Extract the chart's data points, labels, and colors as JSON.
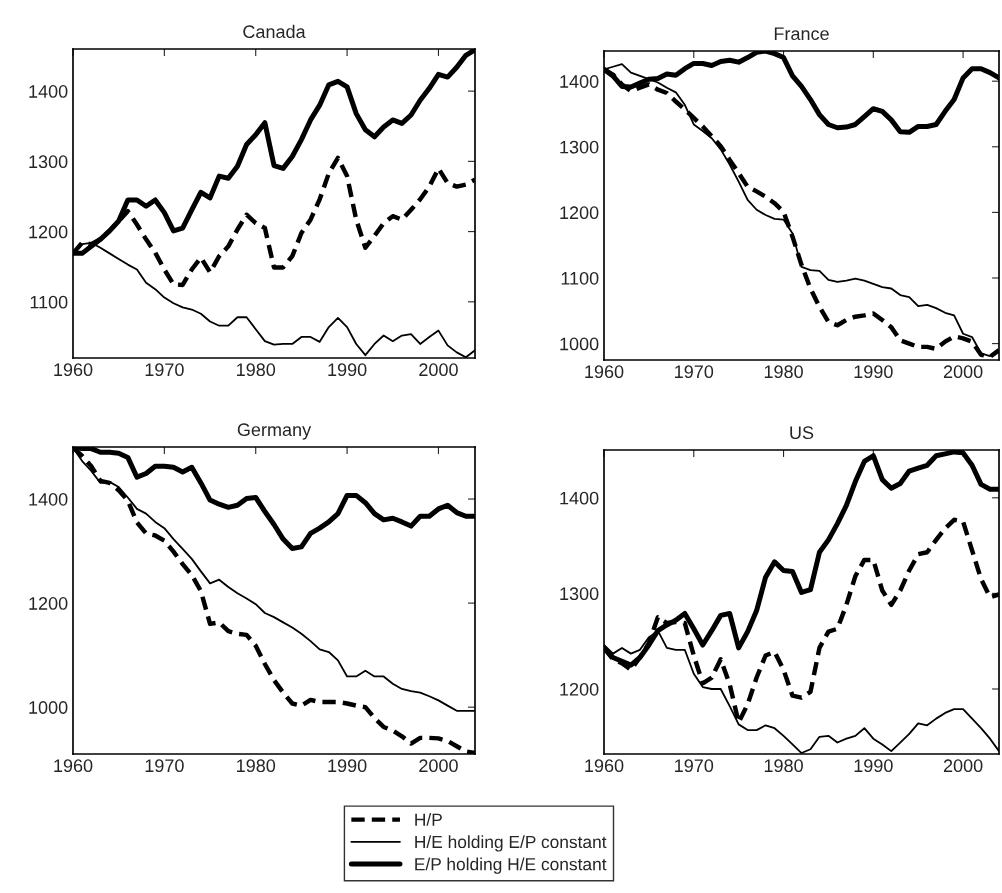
{
  "chart_data": [
    {
      "type": "line",
      "title": "Canada",
      "x": [
        1960,
        1961,
        1962,
        1963,
        1964,
        1965,
        1966,
        1967,
        1968,
        1969,
        1970,
        1971,
        1972,
        1973,
        1974,
        1975,
        1976,
        1977,
        1978,
        1979,
        1980,
        1981,
        1982,
        1983,
        1984,
        1985,
        1986,
        1987,
        1988,
        1989,
        1990,
        1991,
        1992,
        1993,
        1994,
        1995,
        1996,
        1997,
        1998,
        1999,
        2000,
        2001,
        2002,
        2003,
        2004
      ],
      "xlim": [
        1960,
        2004
      ],
      "xticks": [
        1960,
        1970,
        1980,
        1990,
        2000
      ],
      "ylim": [
        1020,
        1460
      ],
      "yticks": [
        1100,
        1200,
        1300,
        1400
      ],
      "grid": false,
      "legend": "bottom",
      "series": [
        {
          "name": "H/P",
          "color": "#000000",
          "line_style": "dashed",
          "values": [
            1169,
            1184,
            1182,
            1189,
            1201,
            1215,
            1229,
            1210,
            1189,
            1170,
            1146,
            1125,
            1124,
            1146,
            1163,
            1142,
            1165,
            1179,
            1203,
            1224,
            1212,
            1205,
            1149,
            1149,
            1165,
            1198,
            1217,
            1246,
            1283,
            1305,
            1279,
            1217,
            1177,
            1194,
            1212,
            1222,
            1217,
            1231,
            1246,
            1264,
            1290,
            1269,
            1264,
            1267,
            1274
          ]
        },
        {
          "name": "H/E holding E/P constant",
          "color": "#000000",
          "line_style": "solid",
          "values": [
            1169,
            1182,
            1184,
            1177,
            1169,
            1161,
            1153,
            1146,
            1127,
            1118,
            1106,
            1098,
            1092,
            1089,
            1083,
            1072,
            1066,
            1066,
            1078,
            1078,
            1061,
            1044,
            1039,
            1040,
            1040,
            1050,
            1050,
            1043,
            1064,
            1077,
            1064,
            1040,
            1024,
            1040,
            1052,
            1044,
            1052,
            1054,
            1040,
            1050,
            1059,
            1038,
            1028,
            1021,
            1031
          ]
        },
        {
          "name": "E/P holding H/E constant",
          "color": "#000000",
          "line_style": "solid",
          "values": [
            1169,
            1169,
            1179,
            1189,
            1201,
            1215,
            1245,
            1245,
            1236,
            1245,
            1227,
            1201,
            1205,
            1231,
            1256,
            1248,
            1279,
            1276,
            1293,
            1324,
            1338,
            1355,
            1294,
            1290,
            1307,
            1331,
            1359,
            1380,
            1409,
            1414,
            1406,
            1368,
            1345,
            1335,
            1349,
            1359,
            1354,
            1366,
            1387,
            1404,
            1424,
            1420,
            1434,
            1451,
            1459
          ]
        }
      ]
    },
    {
      "type": "line",
      "title": "France",
      "x": [
        1960,
        1961,
        1962,
        1963,
        1964,
        1965,
        1966,
        1967,
        1968,
        1969,
        1970,
        1971,
        1972,
        1973,
        1974,
        1975,
        1976,
        1977,
        1978,
        1979,
        1980,
        1981,
        1982,
        1983,
        1984,
        1985,
        1986,
        1987,
        1988,
        1989,
        1990,
        1991,
        1992,
        1993,
        1994,
        1995,
        1996,
        1997,
        1998,
        1999,
        2000,
        2001,
        2002,
        2003,
        2004
      ],
      "xlim": [
        1960,
        2004
      ],
      "xticks": [
        1960,
        1970,
        1980,
        1990,
        2000
      ],
      "ylim": [
        975,
        1446
      ],
      "yticks": [
        1000,
        1100,
        1200,
        1300,
        1400
      ],
      "grid": false,
      "series": [
        {
          "color": "#000000",
          "line_style": "dashed",
          "values": [
            1418,
            1410,
            1395,
            1385,
            1390,
            1395,
            1387,
            1382,
            1369,
            1357,
            1344,
            1331,
            1316,
            1301,
            1280,
            1260,
            1239,
            1232,
            1224,
            1214,
            1201,
            1163,
            1120,
            1084,
            1056,
            1033,
            1028,
            1036,
            1041,
            1043,
            1046,
            1036,
            1025,
            1005,
            1000,
            995,
            995,
            992,
            1003,
            1011,
            1008,
            1003,
            983,
            980,
            990
          ]
        },
        {
          "color": "#000000",
          "line_style": "solid",
          "values": [
            1418,
            1422,
            1426,
            1413,
            1408,
            1403,
            1398,
            1390,
            1383,
            1364,
            1334,
            1324,
            1313,
            1296,
            1273,
            1247,
            1219,
            1204,
            1196,
            1190,
            1189,
            1168,
            1117,
            1112,
            1111,
            1097,
            1094,
            1096,
            1099,
            1096,
            1091,
            1086,
            1084,
            1074,
            1071,
            1057,
            1059,
            1054,
            1047,
            1043,
            1015,
            1010,
            985,
            981,
            989
          ]
        },
        {
          "color": "#000000",
          "line_style": "solid",
          "values": [
            1418,
            1408,
            1392,
            1391,
            1397,
            1403,
            1404,
            1411,
            1409,
            1419,
            1427,
            1427,
            1424,
            1430,
            1432,
            1429,
            1436,
            1444,
            1446,
            1442,
            1436,
            1408,
            1392,
            1372,
            1349,
            1334,
            1329,
            1330,
            1334,
            1346,
            1358,
            1354,
            1341,
            1323,
            1322,
            1331,
            1331,
            1334,
            1354,
            1372,
            1405,
            1419,
            1419,
            1413,
            1405
          ]
        }
      ]
    },
    {
      "type": "line",
      "title": "Germany",
      "x": [
        1960,
        1961,
        1962,
        1963,
        1964,
        1965,
        1966,
        1967,
        1968,
        1969,
        1970,
        1971,
        1972,
        1973,
        1974,
        1975,
        1976,
        1977,
        1978,
        1979,
        1980,
        1981,
        1982,
        1983,
        1984,
        1985,
        1986,
        1987,
        1988,
        1989,
        1990,
        1991,
        1992,
        1993,
        1994,
        1995,
        1996,
        1997,
        1998,
        1999,
        2000,
        2001,
        2002,
        2003,
        2004
      ],
      "xlim": [
        1960,
        2004
      ],
      "xticks": [
        1960,
        1970,
        1980,
        1990,
        2000
      ],
      "ylim": [
        910,
        1500
      ],
      "yticks": [
        1000,
        1200,
        1400
      ],
      "grid": false,
      "series": [
        {
          "color": "#000000",
          "line_style": "dashed",
          "values": [
            1499,
            1483,
            1463,
            1435,
            1431,
            1417,
            1397,
            1355,
            1334,
            1330,
            1320,
            1299,
            1275,
            1254,
            1223,
            1160,
            1163,
            1146,
            1141,
            1139,
            1118,
            1083,
            1052,
            1028,
            1007,
            1003,
            1014,
            1010,
            1010,
            1010,
            1007,
            1003,
            1000,
            979,
            962,
            955,
            944,
            930,
            941,
            941,
            940,
            935,
            925,
            915,
            912
          ]
        },
        {
          "color": "#000000",
          "line_style": "solid",
          "values": [
            1499,
            1473,
            1454,
            1431,
            1433,
            1423,
            1403,
            1381,
            1372,
            1356,
            1344,
            1323,
            1304,
            1285,
            1261,
            1238,
            1245,
            1231,
            1219,
            1209,
            1198,
            1181,
            1173,
            1163,
            1153,
            1141,
            1127,
            1111,
            1106,
            1090,
            1059,
            1059,
            1070,
            1059,
            1059,
            1045,
            1035,
            1031,
            1028,
            1021,
            1013,
            1003,
            993,
            993,
            993
          ]
        },
        {
          "color": "#000000",
          "line_style": "solid",
          "values": [
            1499,
            1497,
            1497,
            1490,
            1490,
            1488,
            1480,
            1442,
            1449,
            1463,
            1463,
            1461,
            1452,
            1461,
            1431,
            1398,
            1390,
            1384,
            1388,
            1401,
            1403,
            1376,
            1351,
            1323,
            1305,
            1308,
            1334,
            1344,
            1356,
            1372,
            1407,
            1407,
            1393,
            1372,
            1360,
            1363,
            1356,
            1348,
            1367,
            1367,
            1381,
            1388,
            1374,
            1367,
            1367
          ]
        }
      ]
    },
    {
      "type": "line",
      "title": "US",
      "x": [
        1960,
        1961,
        1962,
        1963,
        1964,
        1965,
        1966,
        1967,
        1968,
        1969,
        1970,
        1971,
        1972,
        1973,
        1974,
        1975,
        1976,
        1977,
        1978,
        1979,
        1980,
        1981,
        1982,
        1983,
        1984,
        1985,
        1986,
        1987,
        1988,
        1989,
        1990,
        1991,
        1992,
        1993,
        1994,
        1995,
        1996,
        1997,
        1998,
        1999,
        2000,
        2001,
        2002,
        2003,
        2004
      ],
      "xlim": [
        1960,
        2004
      ],
      "xticks": [
        1960,
        1970,
        1980,
        1990,
        2000
      ],
      "ylim": [
        1132,
        1450
      ],
      "yticks": [
        1200,
        1300,
        1400
      ],
      "grid": false,
      "series": [
        {
          "color": "#000000",
          "line_style": "dashed",
          "values": [
            1243,
            1231,
            1227,
            1220,
            1233,
            1248,
            1275,
            1269,
            1270,
            1269,
            1235,
            1206,
            1212,
            1231,
            1205,
            1165,
            1184,
            1212,
            1235,
            1239,
            1220,
            1193,
            1191,
            1197,
            1243,
            1260,
            1263,
            1288,
            1318,
            1335,
            1335,
            1303,
            1288,
            1303,
            1324,
            1341,
            1343,
            1356,
            1368,
            1377,
            1375,
            1345,
            1315,
            1296,
            1299
          ]
        },
        {
          "color": "#000000",
          "line_style": "solid",
          "values": [
            1246,
            1237,
            1243,
            1237,
            1241,
            1254,
            1261,
            1243,
            1241,
            1241,
            1216,
            1202,
            1200,
            1200,
            1182,
            1163,
            1157,
            1157,
            1162,
            1159,
            1151,
            1142,
            1133,
            1137,
            1150,
            1151,
            1144,
            1148,
            1151,
            1159,
            1148,
            1142,
            1135,
            1144,
            1153,
            1164,
            1162,
            1169,
            1175,
            1179,
            1179,
            1169,
            1159,
            1148,
            1135
          ]
        },
        {
          "color": "#000000",
          "line_style": "solid",
          "values": [
            1243,
            1233,
            1229,
            1225,
            1233,
            1246,
            1261,
            1267,
            1272,
            1279,
            1263,
            1246,
            1261,
            1277,
            1279,
            1243,
            1260,
            1282,
            1317,
            1333,
            1324,
            1323,
            1301,
            1304,
            1343,
            1356,
            1373,
            1392,
            1417,
            1438,
            1444,
            1419,
            1410,
            1415,
            1428,
            1431,
            1434,
            1444,
            1446,
            1448,
            1447,
            1434,
            1414,
            1409,
            1409
          ]
        }
      ]
    }
  ]
}
